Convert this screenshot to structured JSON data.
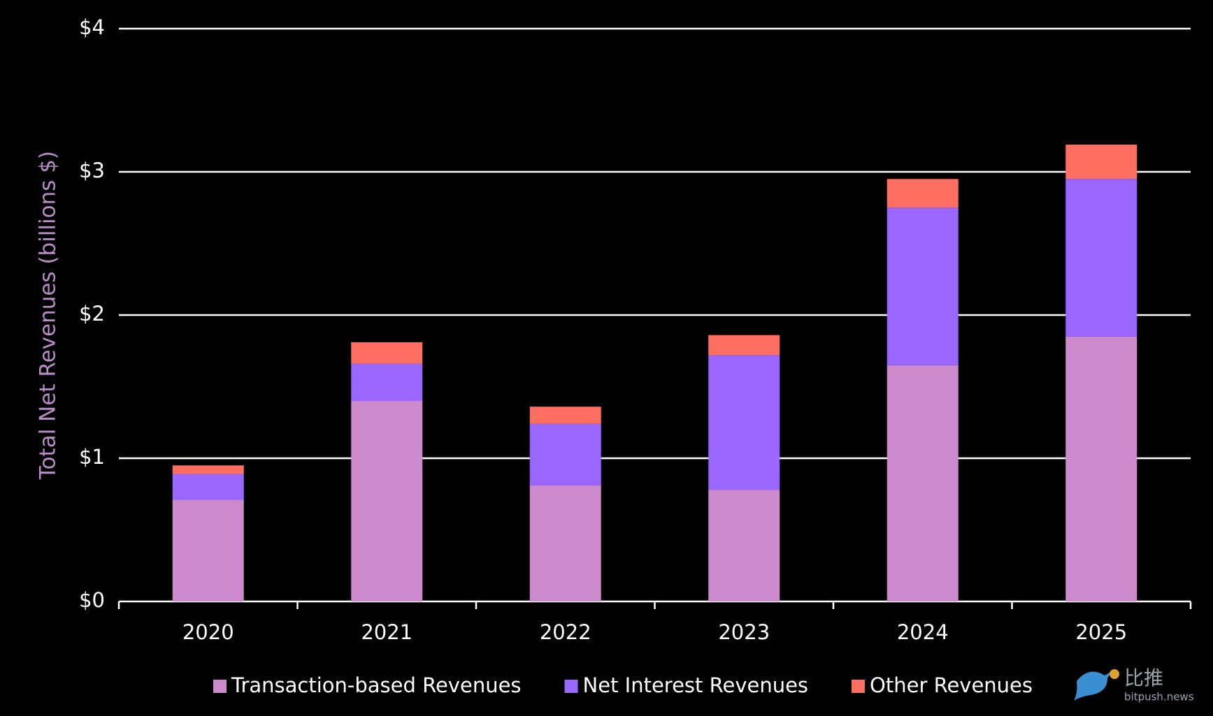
{
  "chart_data": {
    "type": "stacked_bar",
    "y_axis_label": "Total Net Revenues (billions $)",
    "categories": [
      "2020",
      "2021",
      "2022",
      "2023",
      "2024",
      "2025"
    ],
    "series": [
      {
        "name": "Transaction-based Revenues",
        "color": "#cc8acc",
        "values": [
          0.71,
          1.4,
          0.81,
          0.78,
          1.65,
          1.85
        ]
      },
      {
        "name": "Net Interest Revenues",
        "color": "#9966ff",
        "values": [
          0.18,
          0.26,
          0.43,
          0.94,
          1.1,
          1.1
        ]
      },
      {
        "name": "Other Revenues",
        "color": "#ff6f61",
        "values": [
          0.06,
          0.15,
          0.12,
          0.14,
          0.2,
          0.24
        ]
      }
    ],
    "ylim": [
      0,
      4
    ],
    "yticks": [
      {
        "value": 0,
        "label": "$0"
      },
      {
        "value": 1,
        "label": "$1"
      },
      {
        "value": 2,
        "label": "$2"
      },
      {
        "value": 3,
        "label": "$3"
      },
      {
        "value": 4,
        "label": "$4"
      }
    ],
    "grid": true
  },
  "watermark": {
    "text": "比推",
    "subtext": "bitpush.news"
  }
}
